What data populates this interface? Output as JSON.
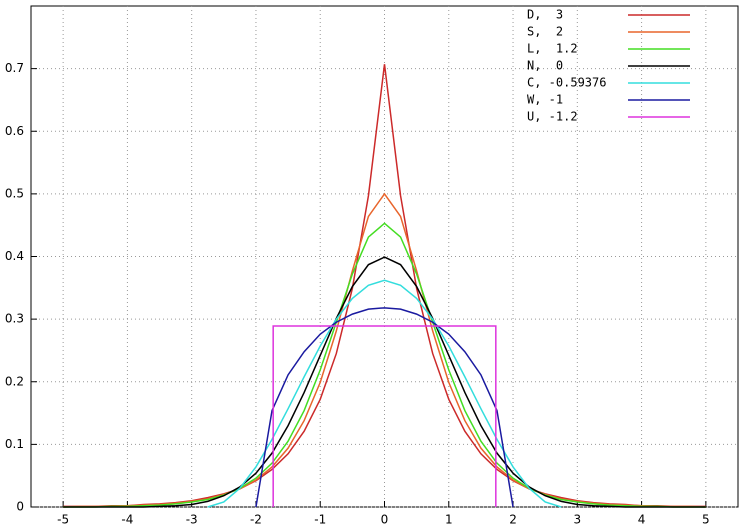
{
  "chart_data": {
    "type": "line",
    "x": [
      -5,
      -4.75,
      -4.5,
      -4.25,
      -4,
      -3.75,
      -3.5,
      -3.25,
      -3,
      -2.75,
      -2.5,
      -2.25,
      -2,
      -1.75,
      -1.5,
      -1.25,
      -1,
      -0.75,
      -0.5,
      -0.25,
      0,
      0.25,
      0.5,
      0.75,
      1,
      1.25,
      1.5,
      1.75,
      2,
      2.25,
      2.5,
      2.75,
      3,
      3.25,
      3.5,
      3.75,
      4,
      4.25,
      4.5,
      4.75,
      5
    ],
    "series": [
      {
        "name": "D,  3",
        "color": "#cc2a2a",
        "values": [
          0.001,
          0.001,
          0.001,
          0.002,
          0.002,
          0.004,
          0.005,
          0.007,
          0.01,
          0.015,
          0.021,
          0.029,
          0.042,
          0.06,
          0.085,
          0.121,
          0.172,
          0.245,
          0.349,
          0.497,
          0.707,
          0.497,
          0.349,
          0.245,
          0.172,
          0.121,
          0.085,
          0.06,
          0.042,
          0.029,
          0.021,
          0.015,
          0.01,
          0.007,
          0.005,
          0.004,
          0.002,
          0.002,
          0.001,
          0.001,
          0.001
        ]
      },
      {
        "name": "S,  2",
        "color": "#e8652c",
        "values": [
          0,
          0.001,
          0.001,
          0.001,
          0.002,
          0.003,
          0.004,
          0.006,
          0.009,
          0.013,
          0.02,
          0.029,
          0.043,
          0.064,
          0.094,
          0.138,
          0.199,
          0.281,
          0.377,
          0.464,
          0.5,
          0.464,
          0.377,
          0.281,
          0.199,
          0.138,
          0.094,
          0.064,
          0.043,
          0.029,
          0.02,
          0.013,
          0.009,
          0.006,
          0.004,
          0.003,
          0.002,
          0.001,
          0.001,
          0.001,
          0
        ]
      },
      {
        "name": "L,  1.2",
        "color": "#44dd22",
        "values": [
          0,
          0,
          0,
          0.001,
          0.001,
          0.002,
          0.003,
          0.005,
          0.008,
          0.012,
          0.019,
          0.03,
          0.046,
          0.07,
          0.105,
          0.154,
          0.219,
          0.295,
          0.372,
          0.431,
          0.453,
          0.431,
          0.372,
          0.295,
          0.219,
          0.154,
          0.105,
          0.07,
          0.046,
          0.03,
          0.019,
          0.012,
          0.008,
          0.005,
          0.003,
          0.002,
          0.001,
          0.001,
          0,
          0,
          0
        ]
      },
      {
        "name": "N,  0",
        "color": "#000000",
        "values": [
          0,
          0,
          0,
          0,
          0,
          0,
          0.001,
          0.002,
          0.004,
          0.009,
          0.018,
          0.032,
          0.054,
          0.086,
          0.13,
          0.183,
          0.242,
          0.301,
          0.352,
          0.387,
          0.399,
          0.387,
          0.352,
          0.301,
          0.242,
          0.183,
          0.13,
          0.086,
          0.054,
          0.032,
          0.018,
          0.009,
          0.004,
          0.002,
          0.001,
          0,
          0,
          0,
          0,
          0,
          0
        ]
      },
      {
        "name": "C, -0.59376",
        "color": "#33dddd",
        "values": [
          null,
          null,
          null,
          null,
          null,
          null,
          null,
          null,
          null,
          0,
          0.008,
          0.03,
          0.064,
          0.108,
          0.157,
          0.208,
          0.257,
          0.3,
          0.333,
          0.354,
          0.362,
          0.354,
          0.333,
          0.3,
          0.257,
          0.208,
          0.157,
          0.108,
          0.064,
          0.03,
          0.008,
          0,
          null,
          null,
          null,
          null,
          null,
          null,
          null,
          null,
          null
        ]
      },
      {
        "name": "W, -1",
        "color": "#1a1aa0",
        "values": [
          null,
          null,
          null,
          null,
          null,
          null,
          null,
          null,
          null,
          null,
          null,
          null,
          0,
          0.154,
          0.211,
          0.248,
          0.276,
          0.295,
          0.308,
          0.316,
          0.318,
          0.316,
          0.308,
          0.295,
          0.276,
          0.248,
          0.211,
          0.154,
          0,
          null,
          null,
          null,
          null,
          null,
          null,
          null,
          null,
          null,
          null,
          null,
          null
        ]
      },
      {
        "name": "U, -1.2",
        "color": "#dd33dd",
        "x": [
          -1.732,
          -1.732,
          1.732,
          1.732
        ],
        "values": [
          0,
          0.289,
          0.289,
          0
        ]
      }
    ],
    "xlim": [
      -5.5,
      5.5
    ],
    "ylim": [
      0,
      0.8
    ],
    "xticks": [
      -5,
      -4,
      -3,
      -2,
      -1,
      0,
      1,
      2,
      3,
      4,
      5
    ],
    "yticks": [
      0,
      0.1,
      0.2,
      0.3,
      0.4,
      0.5,
      0.6,
      0.7
    ],
    "grid": true,
    "legend": "top-right"
  }
}
